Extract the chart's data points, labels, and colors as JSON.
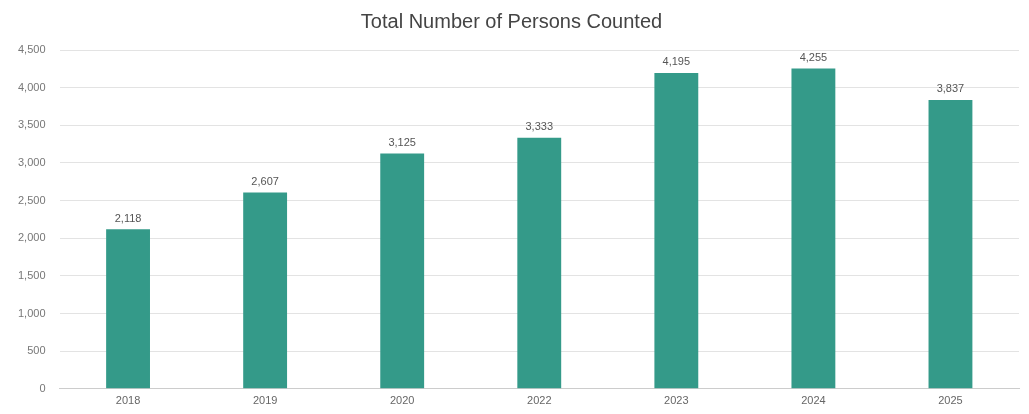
{
  "chart_data": {
    "type": "bar",
    "title": "Total Number of Persons Counted",
    "categories": [
      "2018",
      "2019",
      "2020",
      "2022",
      "2023",
      "2024",
      "2025"
    ],
    "values": [
      2118,
      2607,
      3125,
      3333,
      4195,
      4255,
      3837
    ],
    "color": "#349a89",
    "ylim": [
      0,
      4500
    ],
    "yticks": [
      {
        "value": 0,
        "label": "0"
      },
      {
        "value": 500,
        "label": "500"
      },
      {
        "value": 1000,
        "label": "1,000"
      },
      {
        "value": 1500,
        "label": "1,500"
      },
      {
        "value": 2000,
        "label": "2,000"
      },
      {
        "value": 2500,
        "label": "2,500"
      },
      {
        "value": 3000,
        "label": "3,000"
      },
      {
        "value": 3500,
        "label": "3,500"
      },
      {
        "value": 4000,
        "label": "4,000"
      },
      {
        "value": 4500,
        "label": "4,500"
      }
    ],
    "grid": "y",
    "legend": false,
    "value_labels": [
      "2,118",
      "2,607",
      "3,125",
      "3,333",
      "4,195",
      "4,255",
      "3,837"
    ]
  }
}
